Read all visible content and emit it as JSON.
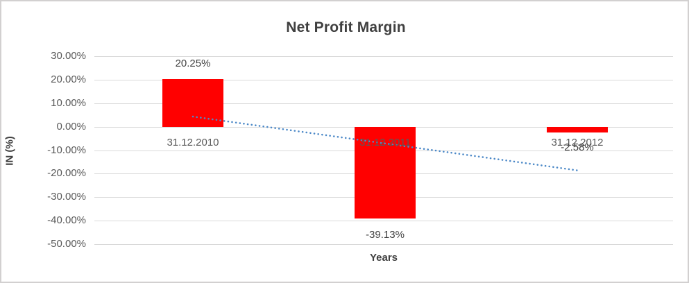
{
  "chart_data": {
    "type": "bar",
    "title": "Net Profit Margin",
    "xlabel": "Years",
    "ylabel": "IN (%)",
    "categories": [
      "31.12.2010",
      "31.12.2011",
      "31.12.2012"
    ],
    "values": [
      20.25,
      -39.13,
      -2.58
    ],
    "data_labels": [
      "20.25%",
      "-39.13%",
      "-2.58%"
    ],
    "y_ticks": [
      {
        "label": "30.00%",
        "value": 30
      },
      {
        "label": "20.00%",
        "value": 20
      },
      {
        "label": "10.00%",
        "value": 10
      },
      {
        "label": "0.00%",
        "value": 0
      },
      {
        "label": "-10.00%",
        "value": -10
      },
      {
        "label": "-20.00%",
        "value": -20
      },
      {
        "label": "-30.00%",
        "value": -30
      },
      {
        "label": "-40.00%",
        "value": -40
      },
      {
        "label": "-50.00%",
        "value": -50
      }
    ],
    "ylim": [
      -50,
      30
    ],
    "grid": true,
    "legend": false,
    "bar_color": "#ff0000",
    "gridline_color": "#d9d9d9",
    "trendline": {
      "type": "linear",
      "style": "dotted",
      "color": "#4e8ac8",
      "start_value": 4.3,
      "end_value": -18.6
    }
  }
}
